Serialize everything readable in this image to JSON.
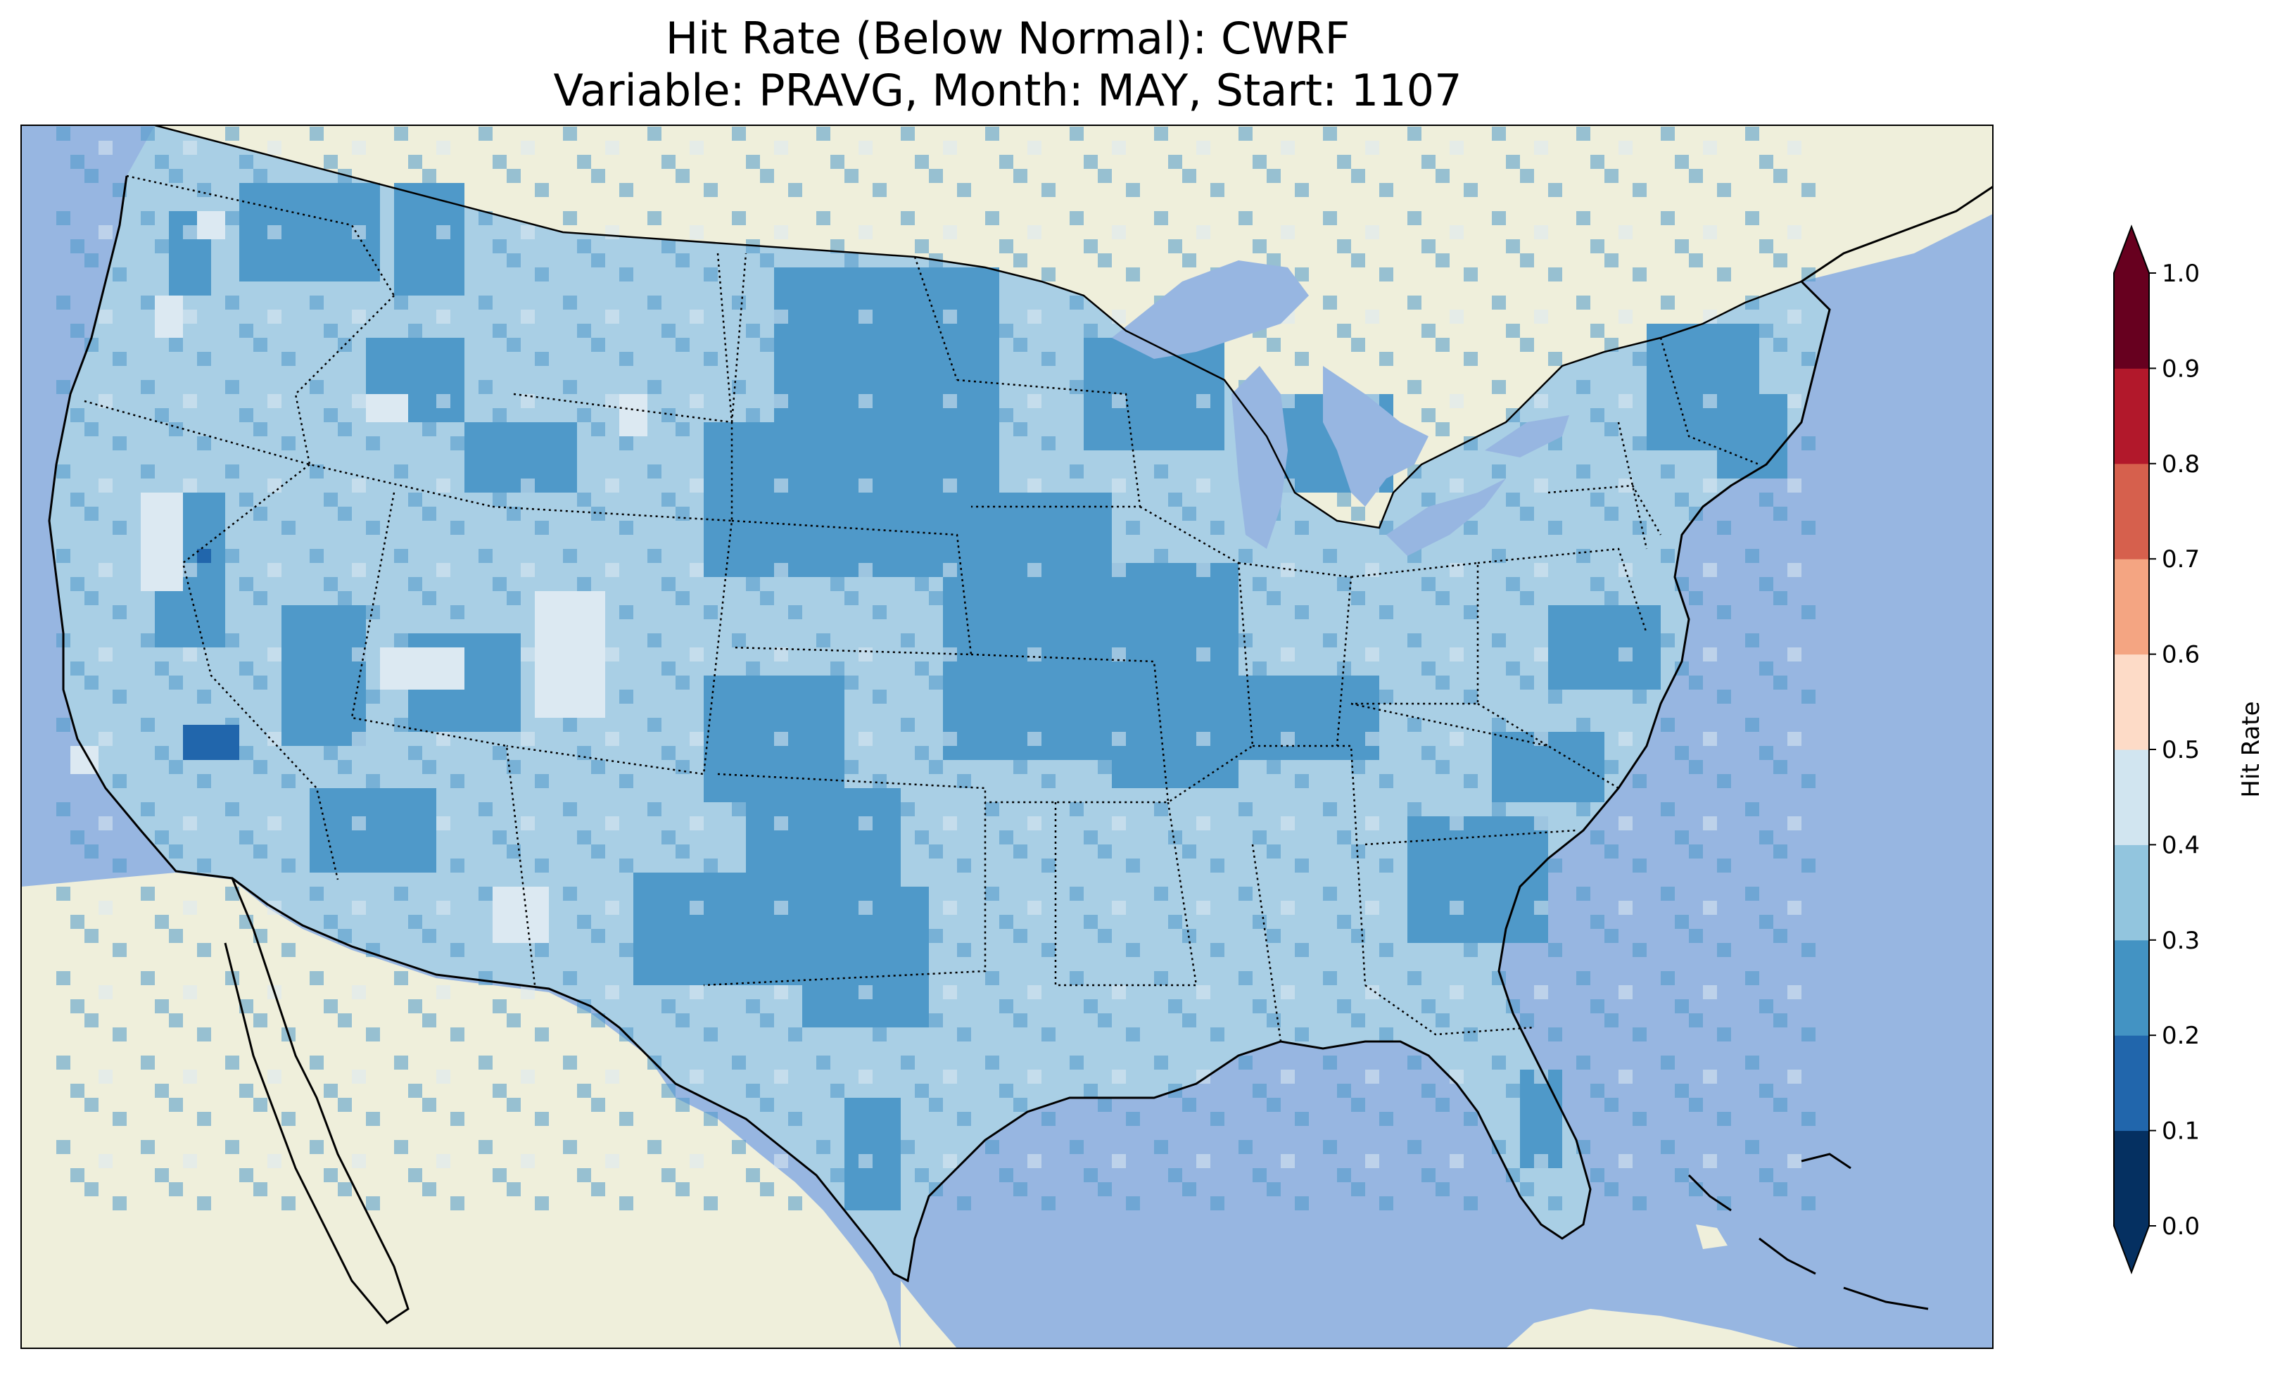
{
  "title": {
    "line1": "Hit Rate (Below Normal): CWRF",
    "line2": "Variable: PRAVG, Month: MAY, Start: 1107"
  },
  "map": {
    "region": "Contiguous United States",
    "ocean_color": "#97b6e1",
    "land_color": "#efefdb",
    "coastline_color": "#000000",
    "state_border_style": "dotted"
  },
  "colorbar": {
    "label": "Hit Rate",
    "ticks": [
      "0.0",
      "0.1",
      "0.2",
      "0.3",
      "0.4",
      "0.5",
      "0.6",
      "0.7",
      "0.8",
      "0.9",
      "1.0"
    ],
    "colors": [
      "#053061",
      "#2166ac",
      "#4393c3",
      "#92c5de",
      "#d1e5f0",
      "#fddbc7",
      "#f4a582",
      "#d6604d",
      "#b2182b",
      "#67001f"
    ],
    "under_color": "#053061",
    "over_color": "#67001f",
    "extend": "both"
  },
  "field_colors": {
    "0.1-0.2": "#2166ac",
    "0.2-0.3": "#4f99c9",
    "0.3-0.4": "#a9cfe5",
    "0.4-0.5": "#dce9f2"
  }
}
